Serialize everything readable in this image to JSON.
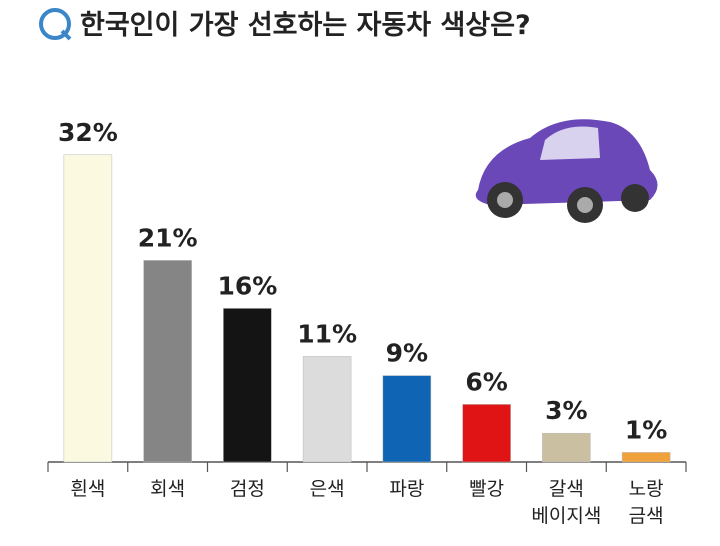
{
  "chart_data": {
    "type": "bar",
    "title": "한국인이 가장 선호하는 자동차 색상은?",
    "categories": [
      "흰색",
      "회색",
      "검정",
      "은색",
      "파랑",
      "빨강",
      "갈색\n베이지색",
      "노랑\n금색"
    ],
    "values": [
      32,
      21,
      16,
      11,
      9,
      6,
      3,
      1
    ],
    "value_labels": [
      "32%",
      "21%",
      "16%",
      "11%",
      "9%",
      "6%",
      "3%",
      "1%"
    ],
    "colors": [
      "#fbf9e0",
      "#858585",
      "#141414",
      "#dcdcdc",
      "#0f64b4",
      "#e01414",
      "#cbbfa2",
      "#f0a23a"
    ]
  }
}
